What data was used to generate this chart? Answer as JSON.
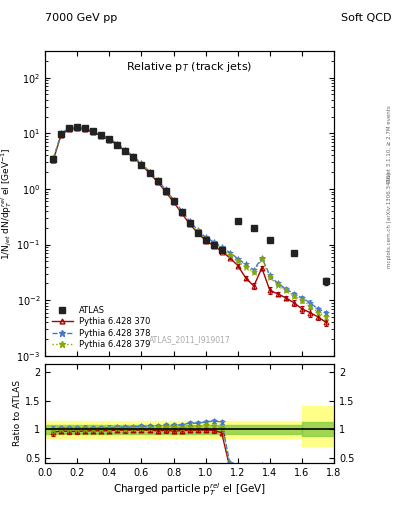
{
  "title_left": "7000 GeV pp",
  "title_right": "Soft QCD",
  "plot_title": "Relative p$_T$ (track jets)",
  "xlabel": "Charged particle p$_T^{rel}$ el [GeV]",
  "ylabel_main": "1/N$_{jet}$ dN/dp$_T^{rel}$ el [GeV$^{-1}$]",
  "ylabel_ratio": "Ratio to ATLAS",
  "watermark": "ATLAS_2011_I919017",
  "right_label": "Rivet 3.1.10, ≥ 2.7M events",
  "right_label2": "mcplots.cern.ch [arXiv:1306.3436]",
  "atlas_x": [
    0.05,
    0.1,
    0.15,
    0.2,
    0.25,
    0.3,
    0.35,
    0.4,
    0.45,
    0.5,
    0.55,
    0.6,
    0.65,
    0.7,
    0.75,
    0.8,
    0.85,
    0.9,
    0.95,
    1.0,
    1.05,
    1.1,
    1.2,
    1.3,
    1.4,
    1.55,
    1.75
  ],
  "atlas_y": [
    3.5,
    9.8,
    12.3,
    12.8,
    12.3,
    10.8,
    9.3,
    7.8,
    6.3,
    4.9,
    3.7,
    2.75,
    1.95,
    1.38,
    0.92,
    0.6,
    0.38,
    0.24,
    0.165,
    0.12,
    0.098,
    0.08,
    0.27,
    0.2,
    0.12,
    0.072,
    0.022
  ],
  "atlas_yerr": [
    0.4,
    0.6,
    0.7,
    0.7,
    0.7,
    0.6,
    0.5,
    0.4,
    0.3,
    0.3,
    0.2,
    0.15,
    0.1,
    0.08,
    0.05,
    0.03,
    0.02,
    0.015,
    0.01,
    0.008,
    0.006,
    0.005,
    0.015,
    0.012,
    0.008,
    0.005,
    0.003
  ],
  "py370_x": [
    0.05,
    0.1,
    0.15,
    0.2,
    0.25,
    0.3,
    0.35,
    0.4,
    0.45,
    0.5,
    0.55,
    0.6,
    0.65,
    0.7,
    0.75,
    0.8,
    0.85,
    0.9,
    0.95,
    1.0,
    1.05,
    1.1,
    1.15,
    1.2,
    1.25,
    1.3,
    1.35,
    1.4,
    1.45,
    1.5,
    1.55,
    1.6,
    1.65,
    1.7,
    1.75
  ],
  "py370_y": [
    3.3,
    9.5,
    11.8,
    12.3,
    11.9,
    10.5,
    9.0,
    7.6,
    6.2,
    4.8,
    3.65,
    2.7,
    1.92,
    1.34,
    0.9,
    0.58,
    0.37,
    0.235,
    0.162,
    0.118,
    0.096,
    0.075,
    0.058,
    0.042,
    0.025,
    0.018,
    0.038,
    0.015,
    0.013,
    0.011,
    0.009,
    0.007,
    0.006,
    0.005,
    0.004
  ],
  "py370_yerr": [
    0.2,
    0.4,
    0.5,
    0.5,
    0.5,
    0.4,
    0.3,
    0.3,
    0.25,
    0.2,
    0.14,
    0.1,
    0.07,
    0.05,
    0.035,
    0.022,
    0.014,
    0.009,
    0.006,
    0.005,
    0.004,
    0.003,
    0.003,
    0.002,
    0.002,
    0.002,
    0.003,
    0.002,
    0.001,
    0.001,
    0.001,
    0.001,
    0.001,
    0.0005,
    0.0005
  ],
  "py378_x": [
    0.05,
    0.1,
    0.15,
    0.2,
    0.25,
    0.3,
    0.35,
    0.4,
    0.45,
    0.5,
    0.55,
    0.6,
    0.65,
    0.7,
    0.75,
    0.8,
    0.85,
    0.9,
    0.95,
    1.0,
    1.05,
    1.1,
    1.15,
    1.2,
    1.25,
    1.3,
    1.35,
    1.4,
    1.45,
    1.5,
    1.55,
    1.6,
    1.65,
    1.7,
    1.75
  ],
  "py378_y": [
    3.5,
    10.0,
    12.5,
    13.0,
    12.6,
    11.0,
    9.5,
    8.0,
    6.5,
    5.05,
    3.85,
    2.88,
    2.05,
    1.46,
    0.98,
    0.64,
    0.41,
    0.265,
    0.182,
    0.135,
    0.112,
    0.09,
    0.072,
    0.056,
    0.044,
    0.035,
    0.058,
    0.028,
    0.02,
    0.016,
    0.013,
    0.011,
    0.009,
    0.007,
    0.006
  ],
  "py378_yerr": [
    0.2,
    0.4,
    0.5,
    0.5,
    0.5,
    0.4,
    0.3,
    0.3,
    0.25,
    0.2,
    0.14,
    0.1,
    0.07,
    0.05,
    0.035,
    0.022,
    0.014,
    0.009,
    0.006,
    0.005,
    0.004,
    0.003,
    0.003,
    0.002,
    0.002,
    0.002,
    0.003,
    0.002,
    0.001,
    0.001,
    0.001,
    0.001,
    0.001,
    0.0005,
    0.0005
  ],
  "py379_x": [
    0.05,
    0.1,
    0.15,
    0.2,
    0.25,
    0.3,
    0.35,
    0.4,
    0.45,
    0.5,
    0.55,
    0.6,
    0.65,
    0.7,
    0.75,
    0.8,
    0.85,
    0.9,
    0.95,
    1.0,
    1.05,
    1.1,
    1.15,
    1.2,
    1.25,
    1.3,
    1.35,
    1.4,
    1.45,
    1.5,
    1.55,
    1.6,
    1.65,
    1.7,
    1.75
  ],
  "py379_y": [
    3.45,
    9.85,
    12.3,
    12.8,
    12.4,
    10.8,
    9.3,
    7.85,
    6.4,
    4.95,
    3.78,
    2.82,
    2.0,
    1.42,
    0.95,
    0.62,
    0.39,
    0.25,
    0.172,
    0.128,
    0.104,
    0.082,
    0.065,
    0.05,
    0.04,
    0.032,
    0.055,
    0.026,
    0.019,
    0.015,
    0.012,
    0.01,
    0.008,
    0.006,
    0.005
  ],
  "py379_yerr": [
    0.2,
    0.4,
    0.5,
    0.5,
    0.5,
    0.4,
    0.3,
    0.3,
    0.25,
    0.2,
    0.14,
    0.1,
    0.07,
    0.05,
    0.035,
    0.022,
    0.014,
    0.009,
    0.006,
    0.005,
    0.004,
    0.003,
    0.003,
    0.002,
    0.002,
    0.002,
    0.003,
    0.002,
    0.001,
    0.001,
    0.001,
    0.001,
    0.001,
    0.0005,
    0.0005
  ],
  "color_atlas": "#222222",
  "color_370": "#aa0000",
  "color_378": "#4477cc",
  "color_379": "#88aa00",
  "ratio_band_x_end": 1.6,
  "ratio_band_x_start_right": 1.6,
  "ratio_band_yellow": [
    0.85,
    1.15
  ],
  "ratio_band_green": [
    0.92,
    1.08
  ],
  "xlim": [
    0.0,
    1.8
  ],
  "ylim_main": [
    0.001,
    300
  ],
  "ylim_ratio": [
    0.4,
    2.15
  ]
}
